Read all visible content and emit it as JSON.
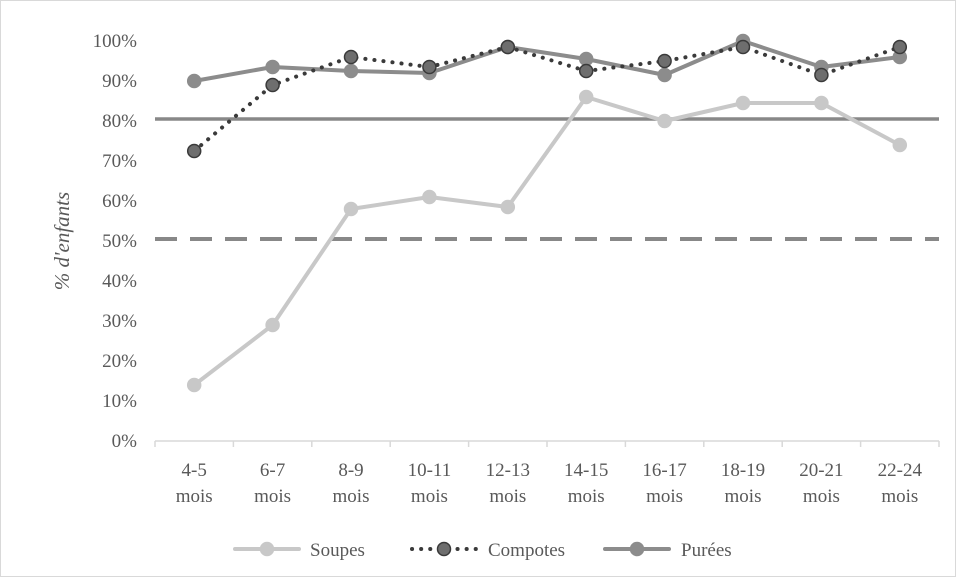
{
  "chart_data": {
    "type": "line",
    "title": "",
    "xlabel": "",
    "ylabel": "% d'enfants",
    "ylim": [
      0,
      100
    ],
    "yticks": [
      "0%",
      "10%",
      "20%",
      "30%",
      "40%",
      "50%",
      "60%",
      "70%",
      "80%",
      "90%",
      "100%"
    ],
    "categories": [
      [
        "4-5",
        "mois"
      ],
      [
        "6-7",
        "mois"
      ],
      [
        "8-9",
        "mois"
      ],
      [
        "10-11",
        "mois"
      ],
      [
        "12-13",
        "mois"
      ],
      [
        "14-15",
        "mois"
      ],
      [
        "16-17",
        "mois"
      ],
      [
        "18-19",
        "mois"
      ],
      [
        "20-21",
        "mois"
      ],
      [
        "22-24",
        "mois"
      ]
    ],
    "series": [
      {
        "name": "Soupes",
        "style": "solid",
        "color": "#c8c8c8",
        "values": [
          14,
          29,
          58,
          61,
          58.5,
          86,
          80,
          84.5,
          84.5,
          74
        ]
      },
      {
        "name": "Compotes",
        "style": "dotted",
        "color": "#3a3a3a",
        "marker_color": "#6e6e6e",
        "values": [
          72.5,
          89,
          96,
          93.5,
          98.5,
          92.5,
          95,
          98.5,
          91.5,
          98.5
        ]
      },
      {
        "name": "Purées",
        "style": "solid",
        "color": "#8c8c8c",
        "values": [
          90,
          93.5,
          92.5,
          92,
          98.5,
          95.5,
          91.5,
          100,
          93.5,
          96
        ]
      }
    ],
    "reference_lines": [
      {
        "value": 80.5,
        "style": "solid",
        "color": "#888888"
      },
      {
        "value": 50.5,
        "style": "dashed",
        "color": "#888888"
      }
    ],
    "legend": "bottom",
    "grid": false
  }
}
